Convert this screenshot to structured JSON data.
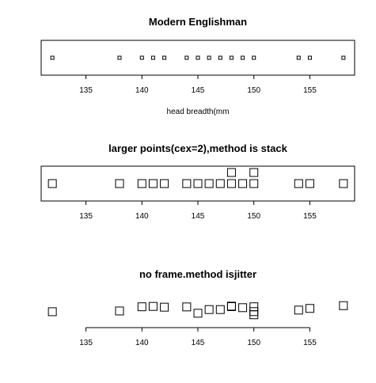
{
  "chart_data": [
    {
      "type": "scatter",
      "method": "overplot",
      "title": "Modern Englishman",
      "xlabel": "head breadth(mm",
      "frame": true,
      "point_size": "small",
      "xlim": [
        131,
        159
      ],
      "xticks": [
        135,
        140,
        145,
        150,
        155
      ],
      "values": [
        132,
        138,
        140,
        141,
        142,
        144,
        145,
        146,
        147,
        148,
        149,
        150,
        154,
        155,
        158
      ]
    },
    {
      "type": "scatter",
      "method": "stack",
      "title": "larger points(cex=2),method is stack",
      "xlabel": "",
      "frame": true,
      "point_size": "large",
      "xlim": [
        131,
        159
      ],
      "xticks": [
        135,
        140,
        145,
        150,
        155
      ],
      "values": [
        132,
        138,
        140,
        141,
        142,
        144,
        145,
        146,
        147,
        148,
        148,
        149,
        150,
        150,
        154,
        155,
        158
      ]
    },
    {
      "type": "scatter",
      "method": "jitter",
      "title": "no frame.method isjitter",
      "xlabel": "",
      "frame": false,
      "point_size": "large",
      "xlim": [
        131,
        159
      ],
      "xticks": [
        135,
        140,
        145,
        150,
        155
      ],
      "values": [
        132,
        138,
        140,
        141,
        142,
        144,
        145,
        146,
        147,
        148,
        148,
        149,
        150,
        150,
        150,
        154,
        155,
        158
      ],
      "jitter": [
        0.62,
        0.56,
        0.23,
        0.2,
        0.26,
        0.24,
        0.74,
        0.45,
        0.45,
        0.22,
        0.18,
        0.3,
        0.86,
        0.61,
        0.23,
        0.49,
        0.36,
        0.14
      ]
    }
  ]
}
